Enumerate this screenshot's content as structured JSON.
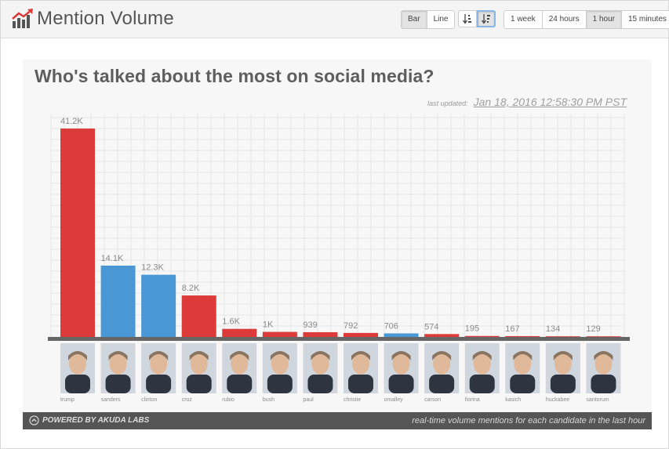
{
  "header": {
    "title": "Mention Volume",
    "logo_icon": "chart-trend-icon",
    "chart_types": [
      {
        "label": "Bar",
        "active": true
      },
      {
        "label": "Line",
        "active": false
      }
    ],
    "sort_buttons": [
      {
        "icon": "sort-ascending-icon",
        "active": false
      },
      {
        "icon": "sort-descending-icon",
        "active": true
      }
    ],
    "ranges": [
      {
        "label": "1 week",
        "active": false
      },
      {
        "label": "24 hours",
        "active": false
      },
      {
        "label": "1 hour",
        "active": true
      },
      {
        "label": "15 minutes",
        "active": false
      }
    ]
  },
  "panel": {
    "last_updated_label": "last updated:",
    "last_updated_value": "Jan 18, 2016 12:58:30 PM PST"
  },
  "footer": {
    "powered_by": "POWERED BY AKUDA LABS",
    "note": "real-time volume mentions for each candidate in the last hour",
    "icon": "chevron-up-circle-icon"
  },
  "colors": {
    "republican": "#dd3a3a",
    "democrat": "#4a97d6",
    "axis": "#666666",
    "grid": "#e6e6e6",
    "value_label": "#8a8a8a"
  },
  "chart_data": {
    "type": "bar",
    "title": "Who's talked about the most on social media?",
    "xlabel": "",
    "ylabel": "",
    "ylim": [
      0,
      44000
    ],
    "grid": true,
    "categories": [
      "trump",
      "sanders",
      "clinton",
      "cruz",
      "rubio",
      "bush",
      "paul",
      "christie",
      "omalley",
      "carson",
      "fiorina",
      "kasich",
      "huckabee",
      "santorum"
    ],
    "values": [
      41200,
      14100,
      12300,
      8200,
      1600,
      1000,
      939,
      792,
      706,
      574,
      195,
      167,
      134,
      129
    ],
    "value_labels": [
      "41.2K",
      "14.1K",
      "12.3K",
      "8.2K",
      "1.6K",
      "1K",
      "939",
      "792",
      "706",
      "574",
      "195",
      "167",
      "134",
      "129"
    ],
    "party": [
      "republican",
      "democrat",
      "democrat",
      "republican",
      "republican",
      "republican",
      "republican",
      "republican",
      "democrat",
      "republican",
      "republican",
      "republican",
      "republican",
      "republican"
    ]
  }
}
